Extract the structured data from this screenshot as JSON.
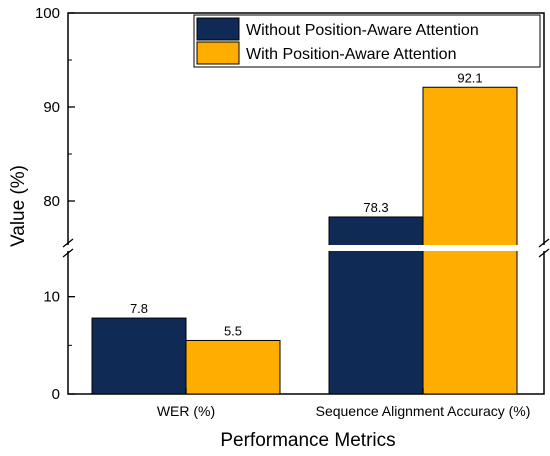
{
  "chart_data": {
    "type": "bar",
    "xlabel": "Performance Metrics",
    "ylabel": "Value (%)",
    "categories": [
      "WER (%)",
      "Sequence Alignment Accuracy (%)"
    ],
    "series": [
      {
        "name": "Without Position-Aware Attention",
        "values": [
          7.8,
          78.3
        ],
        "color": "#102a56"
      },
      {
        "name": "With Position-Aware Attention",
        "values": [
          5.5,
          92.1
        ],
        "color": "#ffad00"
      }
    ],
    "data_labels": [
      [
        "7.8",
        "78.3"
      ],
      [
        "5.5",
        "92.1"
      ]
    ],
    "y_axis": {
      "broken": true,
      "lower_segment": {
        "range": [
          0,
          15
        ],
        "ticks": [
          0,
          10
        ]
      },
      "upper_segment": {
        "range": [
          75,
          100
        ],
        "ticks": [
          80,
          90,
          100
        ]
      }
    },
    "legend": "top-right",
    "grid": false
  }
}
